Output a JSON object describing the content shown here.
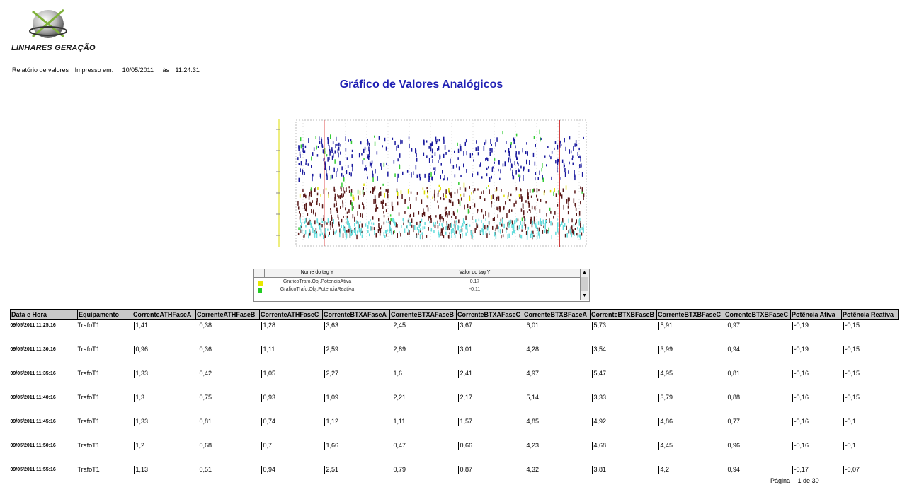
{
  "header": {
    "company": "LINHARES GERAÇÃO",
    "report_label": "Relatório de valores",
    "printed_label": "Impresso em:",
    "date": "10/05/2011",
    "at_label": "às",
    "time": "11:24:31"
  },
  "title": "Gráfico de Valores Analógicos",
  "legend": {
    "col_name": "Nome do tag Y",
    "col_value": "Valor do tag Y",
    "rows": [
      {
        "name": "GraficoTrafo.Obj.PotenciaAtiva",
        "value": "0,17",
        "color": "#e8e800"
      },
      {
        "name": "GraficoTrafo.Obj.PotenciaReativa",
        "value": "-0,11",
        "color": "#22cc22"
      }
    ]
  },
  "table": {
    "headers": [
      "Data e Hora",
      "Equipamento",
      "CorrenteATHFaseA",
      "CorrenteATHFaseB",
      "CorrenteATHFaseC",
      "CorrenteBTXAFaseA",
      "CorrenteBTXAFaseB",
      "CorrenteBTXAFaseC",
      "CorrenteBTXBFaseA",
      "CorrenteBTXBFaseB",
      "CorrenteBTXBFaseC",
      "CorrenteBTXBFaseC",
      "Potência Ativa",
      "Potência Reativa"
    ],
    "rows": [
      [
        "09/05/2011 11:25:16",
        "TrafoT1",
        "1,41",
        "0,38",
        "1,28",
        "3,63",
        "2,45",
        "3,67",
        "6,01",
        "5,73",
        "5,91",
        "0,97",
        "-0,19",
        "-0,15"
      ],
      [
        "09/05/2011 11:30:16",
        "TrafoT1",
        "0,96",
        "0,36",
        "1,11",
        "2,59",
        "2,89",
        "3,01",
        "4,28",
        "3,54",
        "3,99",
        "0,94",
        "-0,19",
        "-0,15"
      ],
      [
        "09/05/2011 11:35:16",
        "TrafoT1",
        "1,33",
        "0,42",
        "1,05",
        "2,27",
        "1,6",
        "2,41",
        "4,97",
        "5,47",
        "4,95",
        "0,81",
        "-0,16",
        "-0,15"
      ],
      [
        "09/05/2011 11:40:16",
        "TrafoT1",
        "1,3",
        "0,75",
        "0,93",
        "1,09",
        "2,21",
        "2,17",
        "5,14",
        "3,33",
        "3,79",
        "0,88",
        "-0,16",
        "-0,15"
      ],
      [
        "09/05/2011 11:45:16",
        "TrafoT1",
        "1,33",
        "0,81",
        "0,74",
        "1,12",
        "1,11",
        "1,57",
        "4,85",
        "4,92",
        "4,86",
        "0,77",
        "-0,16",
        "-0,1"
      ],
      [
        "09/05/2011 11:50:16",
        "TrafoT1",
        "1,2",
        "0,68",
        "0,7",
        "1,66",
        "0,47",
        "0,66",
        "4,23",
        "4,68",
        "4,45",
        "0,96",
        "-0,16",
        "-0,1"
      ],
      [
        "09/05/2011 11:55:16",
        "TrafoT1",
        "1,13",
        "0,51",
        "0,94",
        "2,51",
        "0,79",
        "0,87",
        "4,32",
        "3,81",
        "4,2",
        "0,94",
        "-0,17",
        "-0,07"
      ]
    ]
  },
  "footer": {
    "page_label": "Página",
    "page_value": "1 de 30"
  },
  "chart_data": {
    "type": "scatter",
    "title": "",
    "grid": true,
    "series_colors": [
      "#1a1a9e",
      "#5a1a1a",
      "#66dddd",
      "#33cc33",
      "#dddd00"
    ],
    "marker_colors": [
      "#e05050",
      "#c00000"
    ]
  }
}
